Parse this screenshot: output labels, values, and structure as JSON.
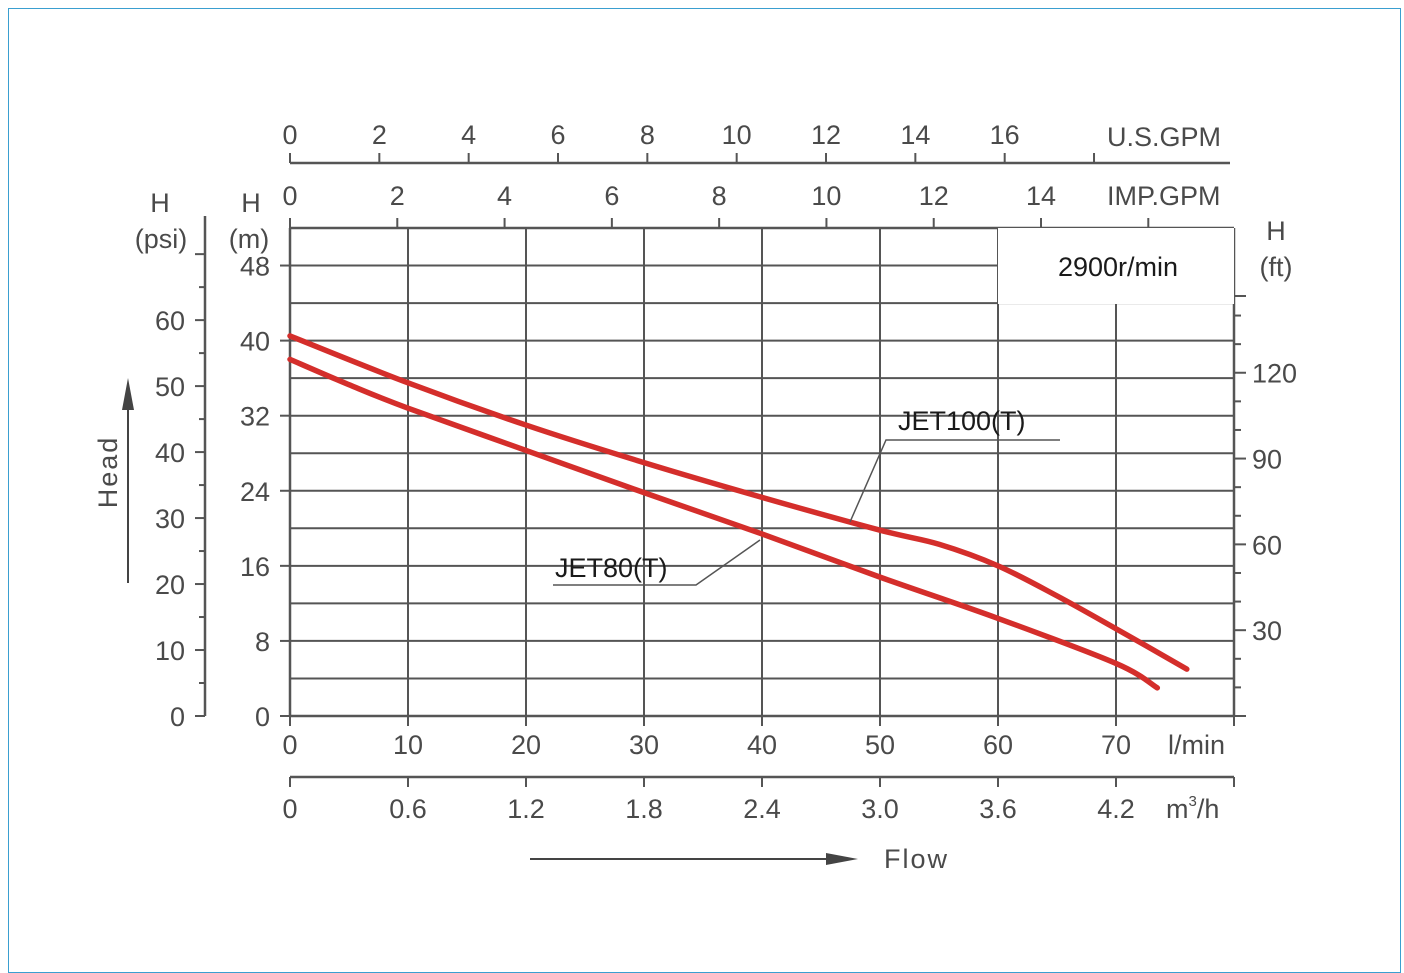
{
  "colors": {
    "curve": "#d42e2b",
    "grid": "#555555",
    "axis": "#555555",
    "text": "#4a4a4a",
    "border": "#3a9fd0"
  },
  "chart_data": {
    "type": "line",
    "speed_label": "2900r/min",
    "x_axis": {
      "ticks": [
        "0",
        "10",
        "20",
        "30",
        "40",
        "50",
        "60",
        "70"
      ],
      "unit": "l/min",
      "range": [
        0,
        80
      ]
    },
    "x_axis_m3h": {
      "ticks": [
        "0",
        "0.6",
        "1.2",
        "1.8",
        "2.4",
        "3.0",
        "3.6",
        "4.2"
      ],
      "unit_base": "m",
      "unit_sup": "3",
      "unit_tail": "/h"
    },
    "x_axis_usgpm": {
      "ticks": [
        "0",
        "2",
        "4",
        "6",
        "8",
        "10",
        "12",
        "14",
        "16"
      ],
      "unit": "U.S.GPM"
    },
    "x_axis_impgpm": {
      "ticks": [
        "0",
        "2",
        "4",
        "6",
        "8",
        "10",
        "12",
        "14"
      ],
      "unit": "IMP.GPM"
    },
    "y_axis_m": {
      "label_top": "H",
      "label_bottom": "(m)",
      "ticks": [
        "0",
        "8",
        "16",
        "24",
        "32",
        "40",
        "48"
      ],
      "range": [
        0,
        52
      ]
    },
    "y_axis_psi": {
      "label_top": "H",
      "label_bottom": "(psi)",
      "ticks": [
        "0",
        "10",
        "20",
        "30",
        "40",
        "50",
        "60"
      ]
    },
    "y_axis_ft": {
      "label_top": "H",
      "label_bottom": "(ft)",
      "ticks": [
        "30",
        "60",
        "90",
        "120"
      ]
    },
    "xlabel": "Flow",
    "ylabel": "Head",
    "series": [
      {
        "name": "JET100(T)",
        "x": [
          0,
          10,
          20,
          30,
          40,
          50,
          55,
          60,
          65,
          70,
          76
        ],
        "y": [
          40.5,
          35.5,
          31,
          27,
          23.3,
          19.8,
          18.3,
          16,
          12.8,
          9.3,
          5
        ]
      },
      {
        "name": "JET80(T)",
        "x": [
          0,
          5,
          10,
          20,
          30,
          40,
          50,
          60,
          70,
          73.5
        ],
        "y": [
          38,
          35.3,
          32.8,
          28.3,
          23.8,
          19.4,
          14.8,
          10.4,
          5.6,
          3
        ]
      }
    ]
  }
}
